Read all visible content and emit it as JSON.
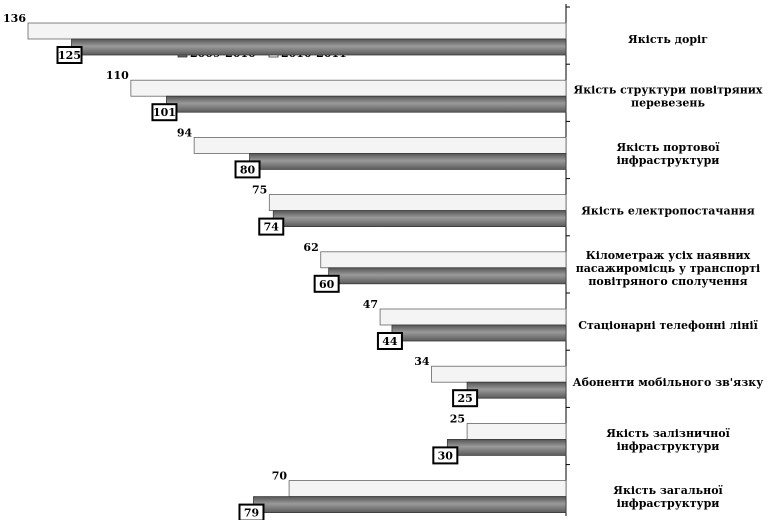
{
  "chart_data": {
    "type": "bar",
    "orientation": "horizontal",
    "direction": "reversed",
    "categories": [
      "Якість доріг",
      "Якість структури повітряних перевезень",
      "Якість портової інфраструктури",
      "Якість електропостачання",
      "Кілометраж усіх наявних пасажиромісць у транспорті повітряного сполучення",
      "Стаціонарні телефонні лінії",
      "Абоненти мобільного зв'язку",
      "Якість залізничної інфраструктури",
      "Якість загальної інфраструктури"
    ],
    "category_lines": [
      [
        "Якість доріг"
      ],
      [
        "Якість структури повітряних",
        "перевезень"
      ],
      [
        "Якість портової",
        "інфраструктури"
      ],
      [
        "Якість електропостачання"
      ],
      [
        "Кілометраж усіх наявних",
        "пасажиромісць у транспорті",
        "повітряного сполучення"
      ],
      [
        "Стаціонарні телефонні лінії"
      ],
      [
        "Абоненти мобільного зв'язку"
      ],
      [
        "Якість залізничної",
        "інфраструктури"
      ],
      [
        "Якість загальної",
        "інфраструктури"
      ]
    ],
    "series": [
      {
        "name": "2009-2010",
        "values": [
          125,
          101,
          80,
          74,
          60,
          44,
          25,
          30,
          79
        ],
        "color": "#7a7a7a"
      },
      {
        "name": "2010-2011",
        "values": [
          136,
          110,
          94,
          75,
          62,
          47,
          34,
          25,
          70
        ],
        "color": "#f4f4f4"
      }
    ],
    "legend_placement": "top-left"
  }
}
